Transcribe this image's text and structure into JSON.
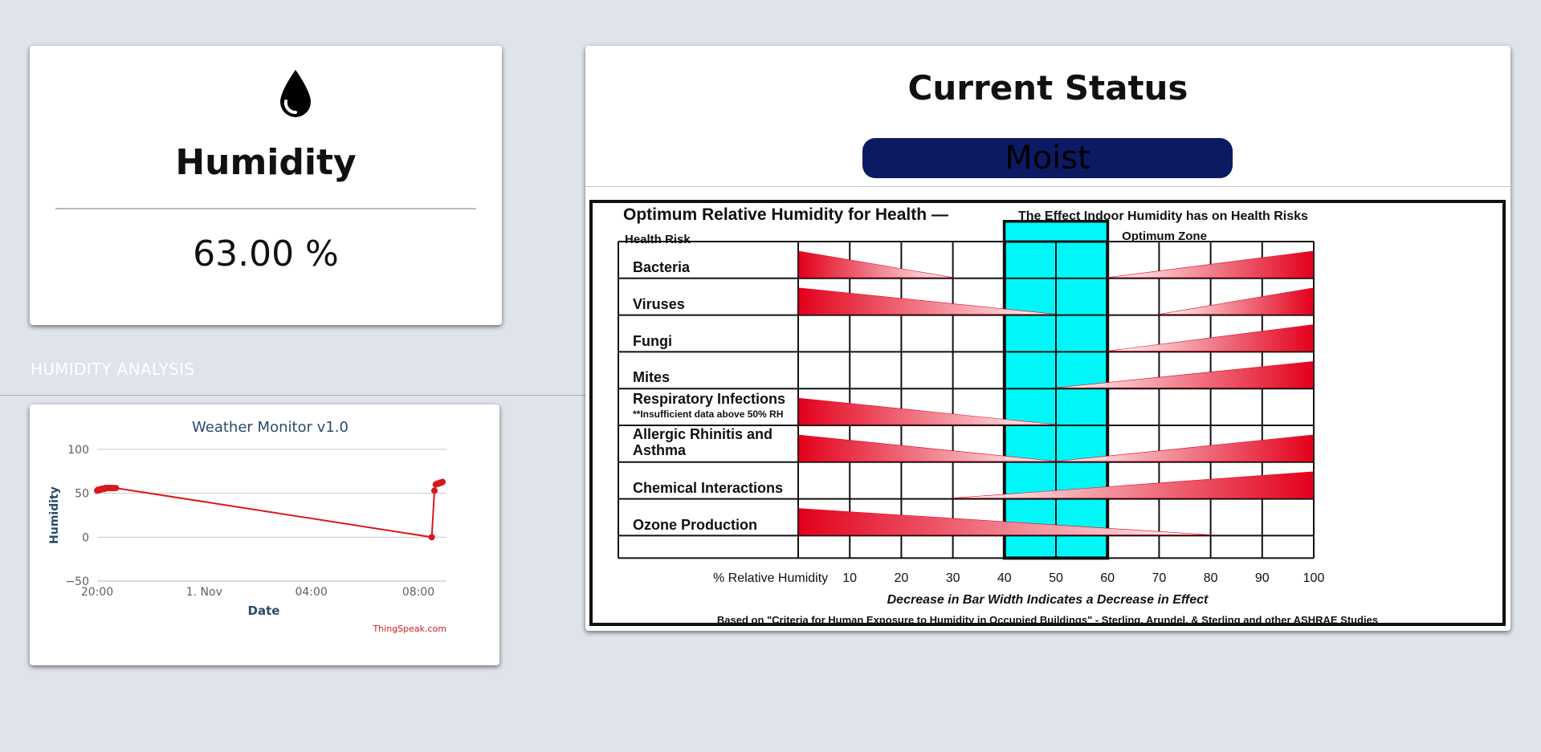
{
  "humidity_card": {
    "icon": "water-drop-icon",
    "title": "Humidity",
    "value": "63.00 %"
  },
  "analysis": {
    "section_title": "HUMIDITY ANALYSIS"
  },
  "chart_data": {
    "type": "line",
    "title": "Weather Monitor v1.0",
    "xlabel": "Date",
    "ylabel": "Humidity",
    "ylim": [
      -50,
      100
    ],
    "yticks": [
      "100",
      "50",
      "0",
      "−50"
    ],
    "xticks": [
      "20:00",
      "1. Nov",
      "04:00",
      "08:00"
    ],
    "credit": "ThingSpeak.com",
    "grid": true,
    "color": "#d7191c",
    "series": [
      {
        "points": [
          {
            "t": 0.0,
            "y": 53
          },
          {
            "t": 0.03,
            "y": 54
          },
          {
            "t": 0.06,
            "y": 54
          },
          {
            "t": 0.09,
            "y": 54
          },
          {
            "t": 0.12,
            "y": 54
          },
          {
            "t": 0.15,
            "y": 55
          },
          {
            "t": 0.18,
            "y": 55
          },
          {
            "t": 0.21,
            "y": 55
          },
          {
            "t": 0.24,
            "y": 55
          },
          {
            "t": 0.27,
            "y": 55
          },
          {
            "t": 0.3,
            "y": 56
          },
          {
            "t": 0.33,
            "y": 56
          },
          {
            "t": 0.36,
            "y": 56
          },
          {
            "t": 0.39,
            "y": 56
          },
          {
            "t": 0.42,
            "y": 56
          },
          {
            "t": 0.45,
            "y": 56
          },
          {
            "t": 0.48,
            "y": 56
          },
          {
            "t": 0.51,
            "y": 56
          },
          {
            "t": 0.54,
            "y": 56
          },
          {
            "t": 0.57,
            "y": 56
          },
          {
            "t": 0.6,
            "y": 56
          },
          {
            "t": 0.7,
            "y": 56
          },
          {
            "t": 12.5,
            "y": 0
          },
          {
            "t": 12.6,
            "y": 53
          },
          {
            "t": 12.65,
            "y": 60
          },
          {
            "t": 12.7,
            "y": 61
          },
          {
            "t": 12.75,
            "y": 61
          },
          {
            "t": 12.8,
            "y": 62
          },
          {
            "t": 12.85,
            "y": 62
          },
          {
            "t": 12.9,
            "y": 63
          }
        ]
      }
    ]
  },
  "status": {
    "title": "Current Status",
    "state": "Moist",
    "state_color": "#0c1a63"
  },
  "health_graphic": {
    "title": "Optimum Relative Humidity for Health —",
    "subtitle": "The Effect Indoor Humidity has on Health Risks",
    "risk_header": "Health Risk",
    "optimum_label": "Optimum Zone",
    "optimum_color": "#00f7f7",
    "bar_color": "#e3001b",
    "risks": [
      {
        "label": "Bacteria",
        "left_end": 30,
        "right_start": 60
      },
      {
        "label": "Viruses",
        "left_end": 50,
        "right_start": 70
      },
      {
        "label": "Fungi",
        "left_end": null,
        "right_start": 60
      },
      {
        "label": "Mites",
        "left_end": null,
        "right_start": 50
      },
      {
        "label": "Respiratory Infections",
        "note": "**Insufficient data above 50% RH",
        "left_end": 50,
        "right_start": null
      },
      {
        "label": "Allergic Rhinitis and Asthma",
        "left_end": 50,
        "right_start": 50
      },
      {
        "label": "Chemical Interactions",
        "left_end": null,
        "right_start": 30
      },
      {
        "label": "Ozone Production",
        "left_end": 80,
        "right_start": null
      }
    ],
    "x_label": "% Relative Humidity",
    "x_ticks": [
      "10",
      "20",
      "30",
      "40",
      "50",
      "60",
      "70",
      "80",
      "90",
      "100"
    ],
    "caption": "Decrease in Bar Width Indicates a Decrease in Effect",
    "source": "Based on \"Criteria for Human Exposure to Humidity in Occupied Buildings\" - Sterling, Arundel, & Sterling and other ASHRAE Studies"
  }
}
